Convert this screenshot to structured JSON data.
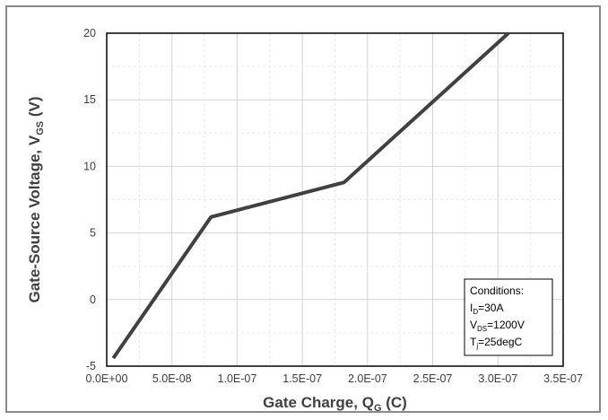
{
  "chart_data": {
    "type": "line",
    "title": "",
    "xlabel": {
      "main": "Gate Charge, Q",
      "sub": "G",
      "tail": " (C)"
    },
    "ylabel": {
      "main": "Gate-Source Voltage, V",
      "sub": "GS",
      "tail": " (V)"
    },
    "xlim": [
      0,
      3.5e-07
    ],
    "ylim": [
      -5,
      20
    ],
    "x_ticks": [
      0,
      5e-08,
      1e-07,
      1.5e-07,
      2e-07,
      2.5e-07,
      3e-07,
      3.5e-07
    ],
    "x_tick_labels": [
      "0.0E+00",
      "5.0E-08",
      "1.0E-07",
      "1.5E-07",
      "2.0E-07",
      "2.5E-07",
      "3.0E-07",
      "3.5E-07"
    ],
    "y_ticks": [
      -5,
      0,
      5,
      10,
      15,
      20
    ],
    "y_tick_labels": [
      "-5",
      "0",
      "5",
      "10",
      "15",
      "20"
    ],
    "grid": true,
    "x_minor_step": 2.5e-08,
    "y_minor_step": 2.5,
    "series": [
      {
        "color": "#404040",
        "x": [
          5e-09,
          8e-08,
          1.82e-07,
          3.08e-07
        ],
        "y": [
          -4.4,
          6.2,
          8.8,
          20
        ]
      }
    ],
    "annotation": {
      "placement": "bottom-right",
      "lines": [
        {
          "main": "Conditions:",
          "sub": "",
          "tail": ""
        },
        {
          "main": "I",
          "sub": "D",
          "tail": "=30A"
        },
        {
          "main": "V",
          "sub": "DS",
          "tail": "=1200V"
        },
        {
          "main": "T",
          "sub": "j",
          "tail": "=25degC"
        }
      ]
    }
  }
}
